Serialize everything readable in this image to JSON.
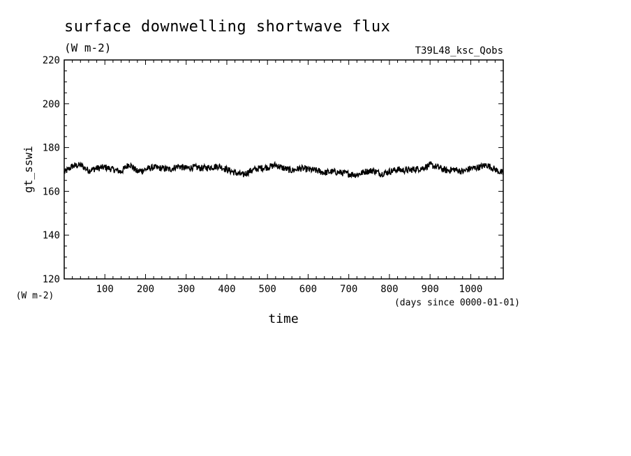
{
  "title": "surface downwelling shortwave flux",
  "units": "(W m-2)",
  "run_label": "T39L48_ksc_Qobs",
  "y_axis_units": "(W m-2)",
  "x_axis_units": "(days since 0000-01-01)",
  "colors": {
    "line": "#000000",
    "background": "#ffffff"
  },
  "chart_data": {
    "type": "line",
    "title": "surface downwelling shortwave flux",
    "xlabel": "time",
    "ylabel": "gt_sswi",
    "xlim": [
      0,
      1080
    ],
    "ylim": [
      120,
      220
    ],
    "x_ticks": [
      100,
      200,
      300,
      400,
      500,
      600,
      700,
      800,
      900,
      1000
    ],
    "y_ticks": [
      120,
      140,
      160,
      180,
      200,
      220
    ],
    "grid": false,
    "series": [
      {
        "x": [
          0,
          20,
          40,
          60,
          80,
          100,
          120,
          140,
          160,
          180,
          200,
          220,
          240,
          260,
          280,
          300,
          320,
          340,
          360,
          380,
          400,
          420,
          440,
          460,
          480,
          500,
          520,
          540,
          560,
          580,
          600,
          620,
          640,
          660,
          680,
          700,
          720,
          740,
          760,
          780,
          800,
          820,
          840,
          860,
          880,
          900,
          920,
          940,
          960,
          980,
          1000,
          1020,
          1040,
          1060,
          1080
        ],
        "values": [
          168.5,
          171.5,
          172,
          169.5,
          170.5,
          171,
          170,
          169,
          172.5,
          169,
          170,
          171,
          170.5,
          170,
          171.5,
          170.5,
          171,
          170.5,
          171,
          171.5,
          170,
          168.5,
          167.5,
          169.5,
          170.5,
          171,
          172,
          170.5,
          169.5,
          170.5,
          170,
          169.5,
          168.5,
          169,
          168.5,
          168,
          167.5,
          169,
          169.5,
          168,
          169,
          170,
          169.5,
          170,
          170.5,
          172,
          171,
          169.5,
          170,
          169,
          170.5,
          171,
          172,
          170,
          168
        ]
      }
    ]
  }
}
